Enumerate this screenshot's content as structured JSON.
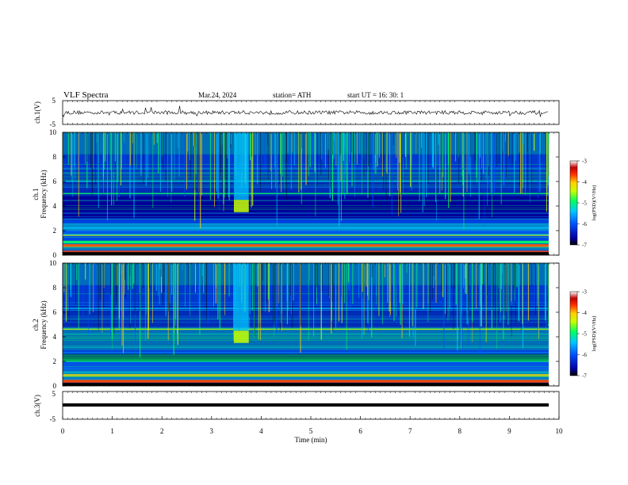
{
  "header": {
    "title": "VLF  Spectra",
    "date": "Mar.24, 2024",
    "station": "station= ATH",
    "start": "start  UT  =    16: 30: 1"
  },
  "chart_data": [
    {
      "type": "line",
      "panel": "ch1-waveform",
      "ylabel": "ch.1(V)",
      "ylim": [
        -5,
        5
      ],
      "y_ticks": [
        "5",
        "-5"
      ],
      "xlim": [
        0,
        10
      ],
      "description_values": {
        "baseline_V": 0,
        "approx_amplitude_V": 1
      }
    },
    {
      "type": "heatmap",
      "panel": "ch1-spectrogram",
      "ylabel_line1": "ch.1",
      "ylabel_line2": "Frequency (kHz)",
      "ylim": [
        0,
        10
      ],
      "y_ticks": [
        "0",
        "2",
        "4",
        "6",
        "8",
        "10"
      ],
      "xlim": [
        0,
        10
      ],
      "colorbar": {
        "label": "log(PSD)(V²/Hz)",
        "range": [
          -7,
          -3
        ],
        "ticks": [
          "-3",
          "-4",
          "-5",
          "-6",
          "-7"
        ]
      },
      "features": {
        "lines_kHz": [
          0.3,
          0.8,
          1.1,
          1.6,
          2.2,
          5.0,
          6.0
        ],
        "burst_time_min": [
          3.45,
          3.75
        ]
      }
    },
    {
      "type": "heatmap",
      "panel": "ch2-spectrogram",
      "ylabel_line1": "ch.2",
      "ylabel_line2": "Frequency (kHz)",
      "ylim": [
        0,
        10
      ],
      "y_ticks": [
        "0",
        "2",
        "4",
        "6",
        "8",
        "10"
      ],
      "xlim": [
        0,
        10
      ],
      "colorbar": {
        "label": "log(PSD)(V²/Hz)",
        "range": [
          -7,
          -3
        ],
        "ticks": [
          "-3",
          "-4",
          "-5",
          "-6",
          "-7"
        ]
      },
      "features": {
        "lines_kHz": [
          0.4,
          0.9,
          2.0,
          4.6,
          6.3
        ],
        "burst_time_min": [
          3.45,
          3.75
        ]
      }
    },
    {
      "type": "line",
      "panel": "ch3-waveform",
      "ylabel": "ch.3(V)",
      "ylim": [
        -5,
        5
      ],
      "y_ticks": [
        "5",
        "-5"
      ],
      "xlim": [
        0,
        10
      ],
      "xlabel": "Time  (min)",
      "x_ticks": [
        "0",
        "1",
        "2",
        "3",
        "4",
        "5",
        "6",
        "7",
        "8",
        "9",
        "10"
      ],
      "description_values": {
        "constant_V": -2
      }
    }
  ],
  "colors": {
    "colormap": [
      "#000000",
      "#0000a0",
      "#0050ff",
      "#00c8ff",
      "#00ff60",
      "#c8ff00",
      "#ffd000",
      "#ff4000",
      "#c00000",
      "#ffffff"
    ]
  }
}
